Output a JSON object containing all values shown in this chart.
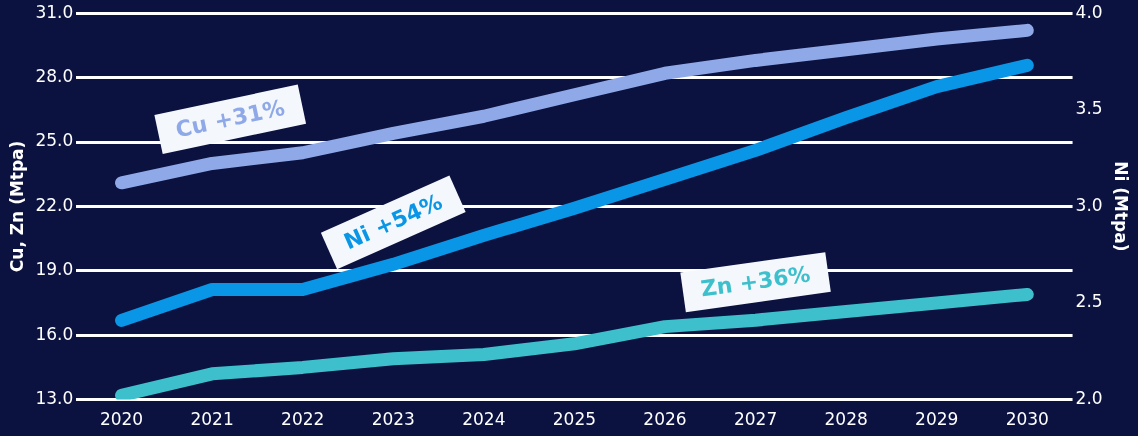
{
  "chart_data": {
    "type": "line",
    "categories": [
      "2020",
      "2021",
      "2022",
      "2023",
      "2024",
      "2025",
      "2026",
      "2027",
      "2028",
      "2029",
      "2030"
    ],
    "series": [
      {
        "name": "Cu +31%",
        "color": "#8fa8e8",
        "values": [
          23.1,
          24.0,
          24.5,
          25.4,
          26.2,
          27.2,
          28.2,
          28.8,
          29.3,
          29.8,
          30.2
        ]
      },
      {
        "name": "Ni +54%",
        "color": "#0a96e6",
        "axis": "y2",
        "values": [
          2.41,
          2.57,
          2.57,
          2.7,
          2.85,
          2.99,
          3.14,
          3.29,
          3.46,
          3.62,
          3.73
        ]
      },
      {
        "name": "Zn +36%",
        "color": "#3dbfcc",
        "values": [
          13.2,
          14.2,
          14.5,
          14.9,
          15.1,
          15.6,
          16.4,
          16.7,
          17.1,
          17.5,
          17.9
        ]
      }
    ],
    "ylabel": "Cu, Zn (Mtpa)",
    "y2label": "Ni (Mtpa)",
    "ylim": [
      13,
      31
    ],
    "yticks": [
      {
        "value": 13,
        "label": "13.0"
      },
      {
        "value": 16,
        "label": "16.0"
      },
      {
        "value": 19,
        "label": "19.0"
      },
      {
        "value": 22,
        "label": "22.0"
      },
      {
        "value": 25,
        "label": "25.0"
      },
      {
        "value": 28,
        "label": "28.0"
      },
      {
        "value": 31,
        "label": "31.0"
      }
    ],
    "y2lim": [
      2,
      4
    ],
    "y2ticks": [
      {
        "value": 2,
        "label": "2.0"
      },
      {
        "value": 2.5,
        "label": "2.5"
      },
      {
        "value": 3,
        "label": "3.0"
      },
      {
        "value": 3.5,
        "label": "3.5"
      },
      {
        "value": 4,
        "label": "4.0"
      }
    ],
    "grid": "y",
    "legend": false,
    "marker": "none",
    "line_style": "solid"
  }
}
